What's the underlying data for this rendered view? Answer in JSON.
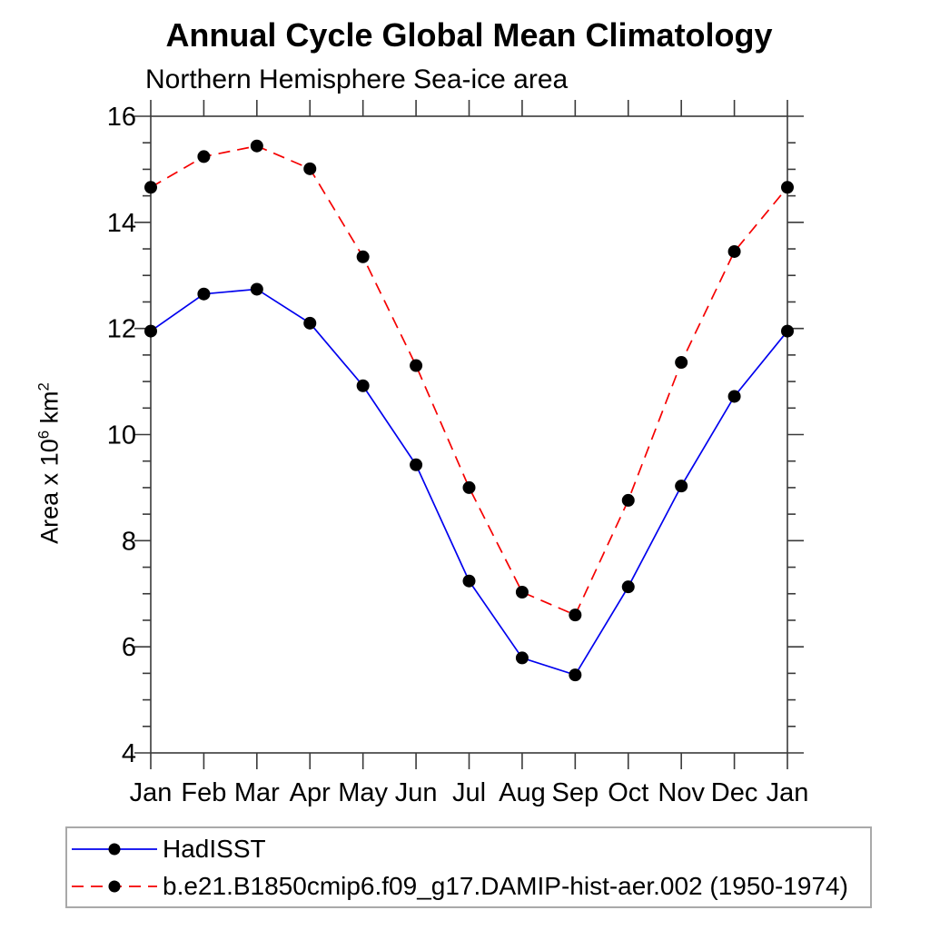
{
  "page": {
    "background": "#ffffff"
  },
  "chart_data": {
    "type": "line",
    "title": "Annual Cycle Global Mean Climatology",
    "subtitle": "Northern Hemisphere Sea-ice area",
    "ylabel_parts": [
      {
        "text": "Area x 10"
      },
      {
        "text": "6",
        "sup": true
      },
      {
        "text": " km"
      },
      {
        "text": "2",
        "sup": true
      }
    ],
    "categories": [
      "Jan",
      "Feb",
      "Mar",
      "Apr",
      "May",
      "Jun",
      "Jul",
      "Aug",
      "Sep",
      "Oct",
      "Nov",
      "Dec",
      "Jan"
    ],
    "ylim": [
      4,
      16
    ],
    "yticks_major": [
      4,
      6,
      8,
      10,
      12,
      14,
      16
    ],
    "ytick_minor_step": 0.5,
    "grid": false,
    "legend_position": "bottom-left-box",
    "axis_color": "#3a3a3a",
    "marker_color": "#000000",
    "series": [
      {
        "name": "HadISST",
        "color": "#0000ee",
        "dash": "solid",
        "marker": "circle",
        "values": [
          11.95,
          12.65,
          12.74,
          12.1,
          10.92,
          9.43,
          7.24,
          5.79,
          5.47,
          7.13,
          9.03,
          10.72,
          11.95
        ]
      },
      {
        "name": "b.e21.B1850cmip6.f09_g17.DAMIP-hist-aer.002 (1950-1974)",
        "color": "#f50000",
        "dash": "dashed",
        "marker": "circle",
        "values": [
          14.66,
          15.24,
          15.44,
          15.01,
          13.35,
          11.3,
          9.0,
          7.03,
          6.6,
          8.76,
          11.36,
          13.45,
          14.66
        ]
      }
    ]
  }
}
